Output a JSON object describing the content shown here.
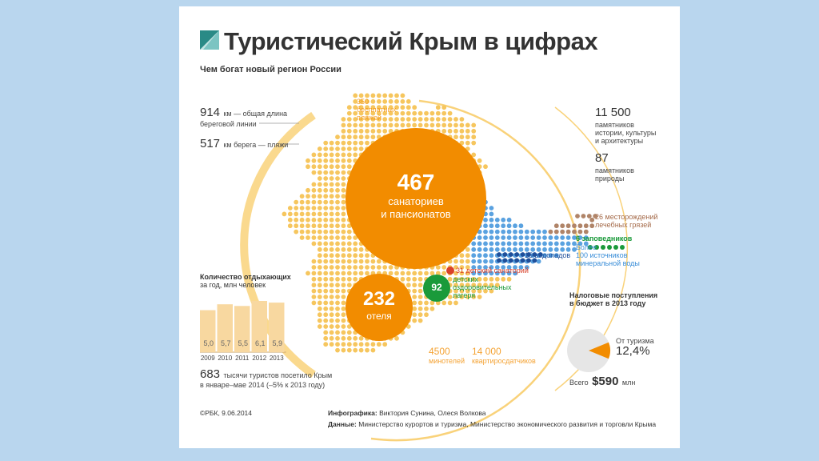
{
  "header": {
    "title": "Туристический Крым в цифрах",
    "subtitle": "Чем богат новый регион России"
  },
  "coast": {
    "total_value": "914",
    "total_text": "км — общая длина",
    "total_text2": "береговой линии",
    "beach_value": "517",
    "beach_text": "км берега — пляжи"
  },
  "beaches": {
    "value": "350",
    "line1": "бесплатных",
    "line2": "пляжей"
  },
  "sanatoriums": {
    "value": "467",
    "line1": "санаториев",
    "line2": "и пансионатов"
  },
  "hotels": {
    "value": "232",
    "line1": "отеля"
  },
  "children_camps": {
    "value": "92",
    "line1": "детских",
    "line2": "оздоровительных",
    "line3": "лагеря"
  },
  "children_sanatorium": {
    "text": "31 детский санаторий"
  },
  "mini_hotels": {
    "value": "4500",
    "line1": "минотелей"
  },
  "apartments": {
    "value": "14 000",
    "line1": "квартиросдатчиков"
  },
  "monuments": {
    "history_value": "11 500",
    "history_line1": "памятников",
    "history_line2": "истории, культуры",
    "history_line3": "и архитектуры",
    "nature_value": "87",
    "nature_line1": "памятников",
    "nature_line2": "природы"
  },
  "resources": {
    "mud": "26 месторождений",
    "mud2": "лечебных грязей",
    "reserves": "6 заповедников",
    "springs1": "Более",
    "springs2": "100 источников",
    "springs3": "минеральной воды",
    "waterfalls": "15 водопадов"
  },
  "colors": {
    "orange": "#f28c00",
    "light_orange": "#f7b84b",
    "dot_yellow": "#f6c65e",
    "green": "#1a9a3a",
    "blue": "#5aa2e0",
    "brown": "#b08468",
    "red": "#d9402a",
    "bar_fill": "#f8d8a0"
  },
  "chart_data": [
    {
      "type": "bar",
      "title": "Количество отдыхающих",
      "subtitle": "за год, млн человек",
      "categories": [
        "2009",
        "2010",
        "2011",
        "2012",
        "2013"
      ],
      "values": [
        5.0,
        5.7,
        5.5,
        6.1,
        5.9
      ],
      "value_labels": [
        "5,0",
        "5,7",
        "5,5",
        "6,1",
        "5,9"
      ],
      "ylim": [
        0,
        6.1
      ]
    },
    {
      "type": "pie",
      "title": "Налоговые поступления",
      "subtitle": "в бюджет в 2013 году",
      "slices": [
        {
          "label": "От туризма",
          "value": 12.4,
          "value_label": "12,4%"
        },
        {
          "label": "",
          "value": 87.6
        }
      ],
      "total_prefix": "Всего",
      "total_value": "$590",
      "total_unit": "млн"
    }
  ],
  "visitors": {
    "value": "683",
    "line1": "тысячи туристов посетило Крым",
    "line2": "в январе–мае 2014 (–5% к 2013 году)"
  },
  "footer": {
    "copyright": "©РБК, 9.06.2014",
    "info_label": "Инфографика:",
    "info_authors": "Виктория Сунина, Олеся Волкова",
    "data_label": "Данные:",
    "data_sources": "Министерство курортов и туризма, Министерство экономического развития и торговли Крыма"
  }
}
